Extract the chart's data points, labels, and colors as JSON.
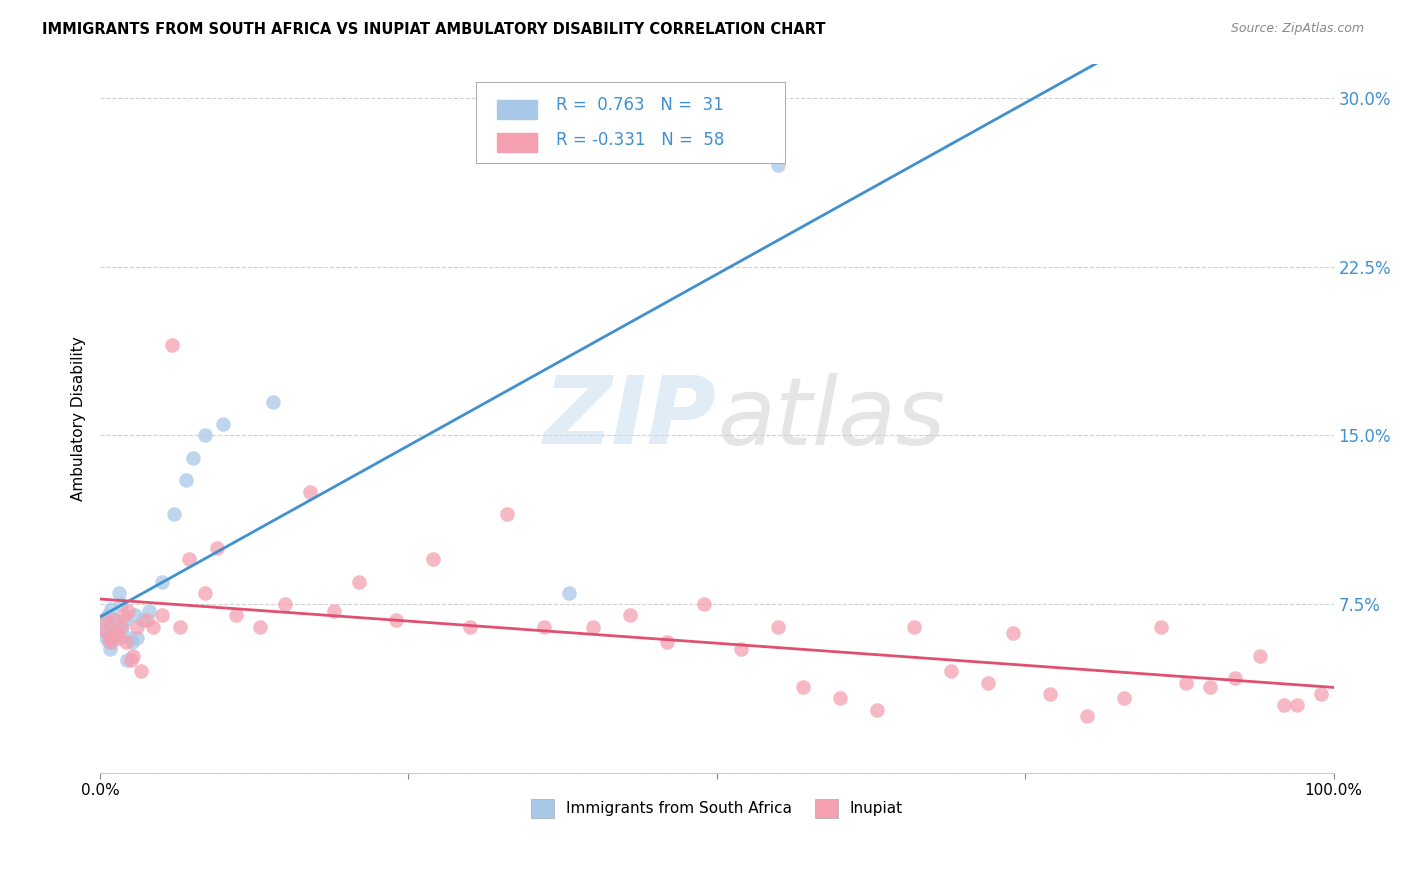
{
  "title": "IMMIGRANTS FROM SOUTH AFRICA VS INUPIAT AMBULATORY DISABILITY CORRELATION CHART",
  "source": "Source: ZipAtlas.com",
  "ylabel": "Ambulatory Disability",
  "yticks": [
    0.0,
    0.075,
    0.15,
    0.225,
    0.3
  ],
  "ytick_labels": [
    "",
    "7.5%",
    "15.0%",
    "22.5%",
    "30.0%"
  ],
  "xmin": 0.0,
  "xmax": 1.0,
  "ymin": 0.0,
  "ymax": 0.315,
  "legend1_label": "Immigrants from South Africa",
  "legend2_label": "Inupiat",
  "R1": 0.763,
  "N1": 31,
  "R2": -0.331,
  "N2": 58,
  "blue_color": "#a8c8e8",
  "pink_color": "#f4a0b0",
  "blue_line_color": "#4090d0",
  "pink_line_color": "#e05070",
  "watermark_zip": "ZIP",
  "watermark_atlas": "atlas",
  "blue_x": [
    0.003,
    0.004,
    0.005,
    0.006,
    0.007,
    0.008,
    0.009,
    0.01,
    0.011,
    0.012,
    0.013,
    0.015,
    0.017,
    0.018,
    0.02,
    0.022,
    0.024,
    0.026,
    0.028,
    0.03,
    0.035,
    0.04,
    0.05,
    0.06,
    0.07,
    0.075,
    0.085,
    0.1,
    0.14,
    0.38,
    0.55
  ],
  "blue_y": [
    0.068,
    0.063,
    0.06,
    0.07,
    0.058,
    0.055,
    0.073,
    0.065,
    0.06,
    0.068,
    0.062,
    0.08,
    0.075,
    0.065,
    0.068,
    0.05,
    0.06,
    0.058,
    0.07,
    0.06,
    0.068,
    0.072,
    0.085,
    0.115,
    0.13,
    0.14,
    0.15,
    0.155,
    0.165,
    0.08,
    0.27
  ],
  "pink_x": [
    0.003,
    0.005,
    0.007,
    0.009,
    0.011,
    0.013,
    0.015,
    0.017,
    0.019,
    0.021,
    0.023,
    0.025,
    0.027,
    0.03,
    0.033,
    0.038,
    0.043,
    0.05,
    0.058,
    0.065,
    0.072,
    0.085,
    0.095,
    0.11,
    0.13,
    0.15,
    0.17,
    0.19,
    0.21,
    0.24,
    0.27,
    0.3,
    0.33,
    0.36,
    0.4,
    0.43,
    0.46,
    0.49,
    0.52,
    0.55,
    0.57,
    0.6,
    0.63,
    0.66,
    0.69,
    0.72,
    0.74,
    0.77,
    0.8,
    0.83,
    0.86,
    0.88,
    0.9,
    0.92,
    0.94,
    0.96,
    0.97,
    0.99
  ],
  "pink_y": [
    0.068,
    0.063,
    0.06,
    0.058,
    0.068,
    0.062,
    0.06,
    0.065,
    0.07,
    0.058,
    0.072,
    0.05,
    0.052,
    0.065,
    0.045,
    0.068,
    0.065,
    0.07,
    0.19,
    0.065,
    0.095,
    0.08,
    0.1,
    0.07,
    0.065,
    0.075,
    0.125,
    0.072,
    0.085,
    0.068,
    0.095,
    0.065,
    0.115,
    0.065,
    0.065,
    0.07,
    0.058,
    0.075,
    0.055,
    0.065,
    0.038,
    0.033,
    0.028,
    0.065,
    0.045,
    0.04,
    0.062,
    0.035,
    0.025,
    0.033,
    0.065,
    0.04,
    0.038,
    0.042,
    0.052,
    0.03,
    0.03,
    0.035
  ]
}
